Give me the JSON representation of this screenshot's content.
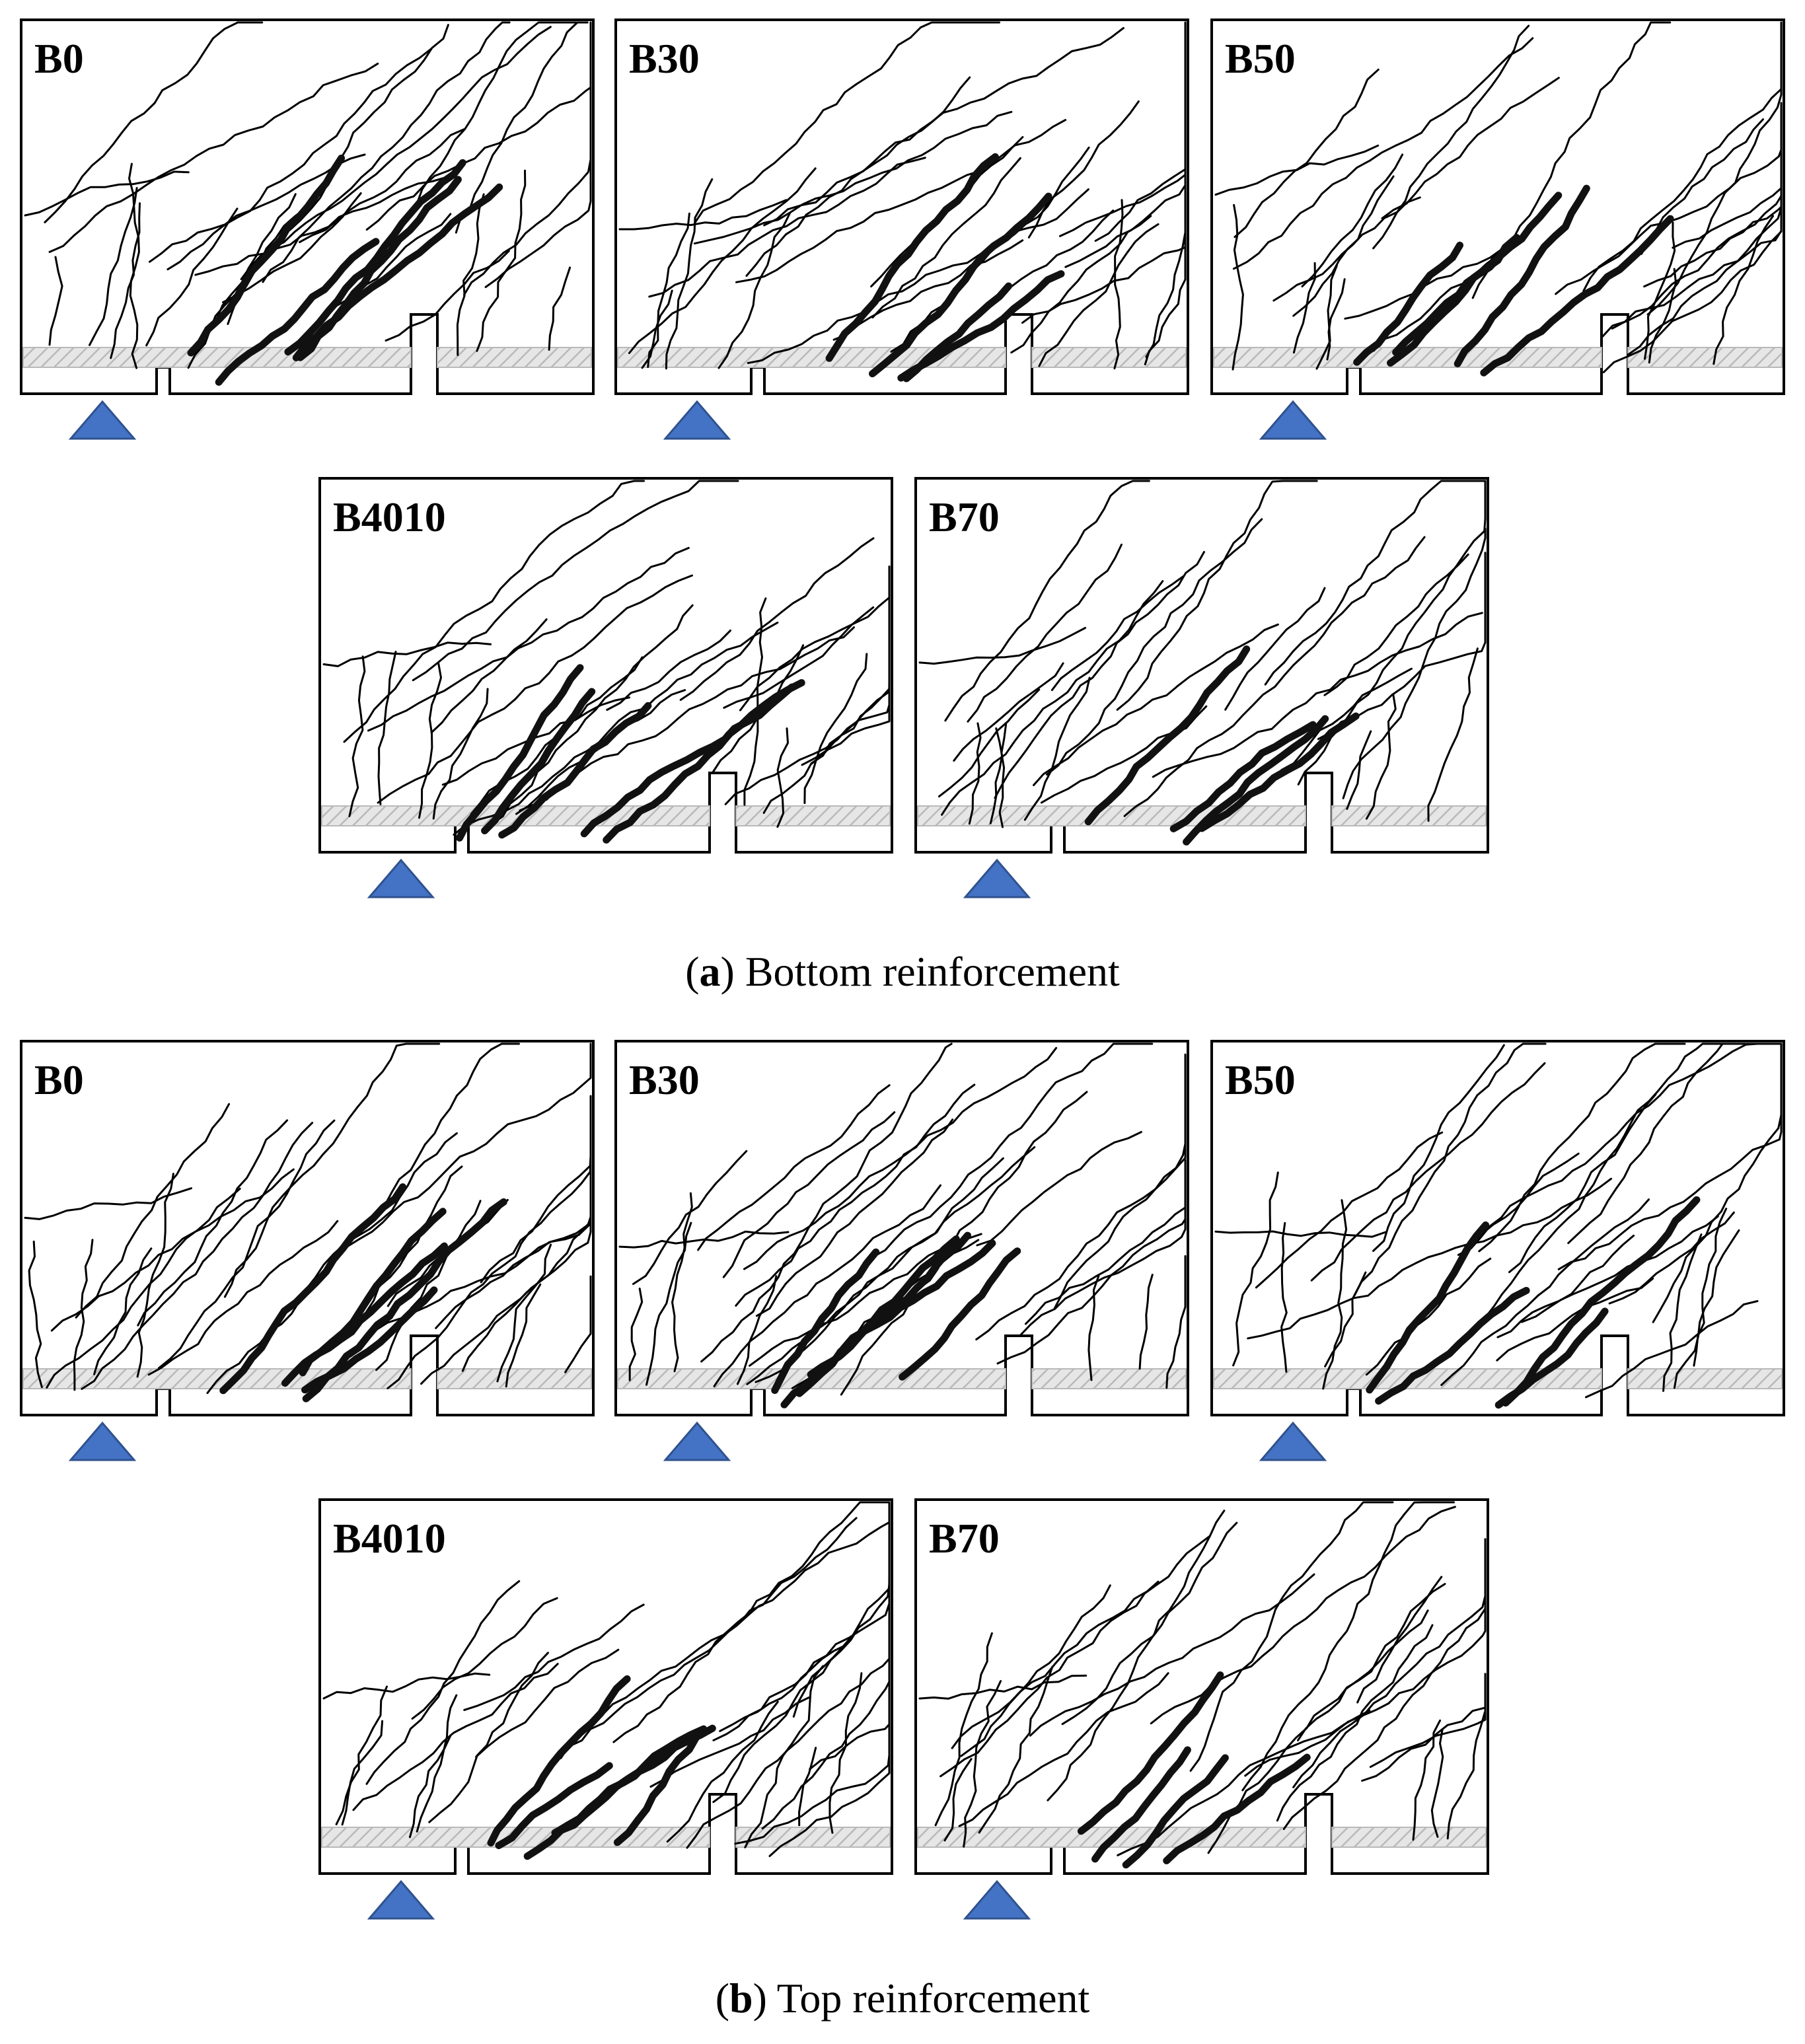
{
  "figure": {
    "colors": {
      "outline": "#000000",
      "support": "#4472c4",
      "support_edge": "#2f528f",
      "rebar_hatch": "#b9b9b9",
      "crack": "#000000"
    },
    "groups": [
      {
        "id": "a",
        "caption_letter": "a",
        "caption_text": "Bottom reinforcement",
        "panels": [
          {
            "label": "B0",
            "seed": 11
          },
          {
            "label": "B30",
            "seed": 23
          },
          {
            "label": "B50",
            "seed": 37
          },
          {
            "label": "B4010",
            "seed": 41
          },
          {
            "label": "B70",
            "seed": 53
          }
        ]
      },
      {
        "id": "b",
        "caption_letter": "b",
        "caption_text": "Top reinforcement",
        "panels": [
          {
            "label": "B0",
            "seed": 61
          },
          {
            "label": "B30",
            "seed": 73
          },
          {
            "label": "B50",
            "seed": 89
          },
          {
            "label": "B4010",
            "seed": 97
          },
          {
            "label": "B70",
            "seed": 109
          }
        ]
      }
    ]
  }
}
